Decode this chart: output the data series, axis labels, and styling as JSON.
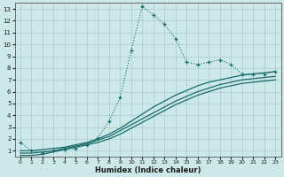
{
  "xlabel": "Humidex (Indice chaleur)",
  "ylabel": "",
  "bg_color": "#cce8e8",
  "line_color": "#1a6b6b",
  "xlim": [
    -0.5,
    23.5
  ],
  "ylim": [
    0.5,
    13.5
  ],
  "xticks": [
    0,
    1,
    2,
    3,
    4,
    5,
    6,
    7,
    8,
    9,
    10,
    11,
    12,
    13,
    14,
    15,
    16,
    17,
    18,
    19,
    20,
    21,
    22,
    23
  ],
  "yticks": [
    1,
    2,
    3,
    4,
    5,
    6,
    7,
    8,
    9,
    10,
    11,
    12,
    13
  ],
  "main_x": [
    0,
    1,
    2,
    3,
    4,
    5,
    6,
    7,
    8,
    9,
    10,
    11,
    12,
    13,
    14,
    15,
    16,
    17,
    18,
    19,
    20,
    21,
    22,
    23
  ],
  "main_y": [
    1.7,
    1.0,
    0.8,
    1.0,
    1.1,
    1.2,
    1.5,
    2.1,
    3.5,
    5.5,
    9.5,
    13.2,
    12.5,
    11.7,
    10.5,
    8.5,
    8.3,
    8.5,
    8.7,
    8.3,
    7.5,
    7.5,
    7.5,
    7.7
  ],
  "line2_x": [
    0,
    1,
    2,
    3,
    4,
    5,
    6,
    7,
    8,
    9,
    10,
    11,
    12,
    13,
    14,
    15,
    16,
    17,
    18,
    19,
    20,
    21,
    22,
    23
  ],
  "line2_y": [
    1.0,
    1.0,
    1.1,
    1.2,
    1.3,
    1.5,
    1.7,
    2.0,
    2.4,
    2.9,
    3.5,
    4.1,
    4.7,
    5.2,
    5.7,
    6.1,
    6.5,
    6.8,
    7.0,
    7.2,
    7.4,
    7.5,
    7.6,
    7.7
  ],
  "line3_x": [
    0,
    1,
    2,
    3,
    4,
    5,
    6,
    7,
    8,
    9,
    10,
    11,
    12,
    13,
    14,
    15,
    16,
    17,
    18,
    19,
    20,
    21,
    22,
    23
  ],
  "line3_y": [
    0.8,
    0.8,
    0.9,
    1.0,
    1.2,
    1.4,
    1.6,
    1.9,
    2.2,
    2.7,
    3.2,
    3.7,
    4.2,
    4.7,
    5.2,
    5.6,
    6.0,
    6.3,
    6.6,
    6.8,
    7.0,
    7.1,
    7.2,
    7.3
  ],
  "line4_x": [
    0,
    1,
    2,
    3,
    4,
    5,
    6,
    7,
    8,
    9,
    10,
    11,
    12,
    13,
    14,
    15,
    16,
    17,
    18,
    19,
    20,
    21,
    22,
    23
  ],
  "line4_y": [
    0.6,
    0.6,
    0.7,
    0.9,
    1.1,
    1.3,
    1.5,
    1.7,
    2.0,
    2.4,
    2.9,
    3.4,
    3.9,
    4.4,
    4.9,
    5.3,
    5.7,
    6.0,
    6.3,
    6.5,
    6.7,
    6.8,
    6.9,
    7.0
  ]
}
